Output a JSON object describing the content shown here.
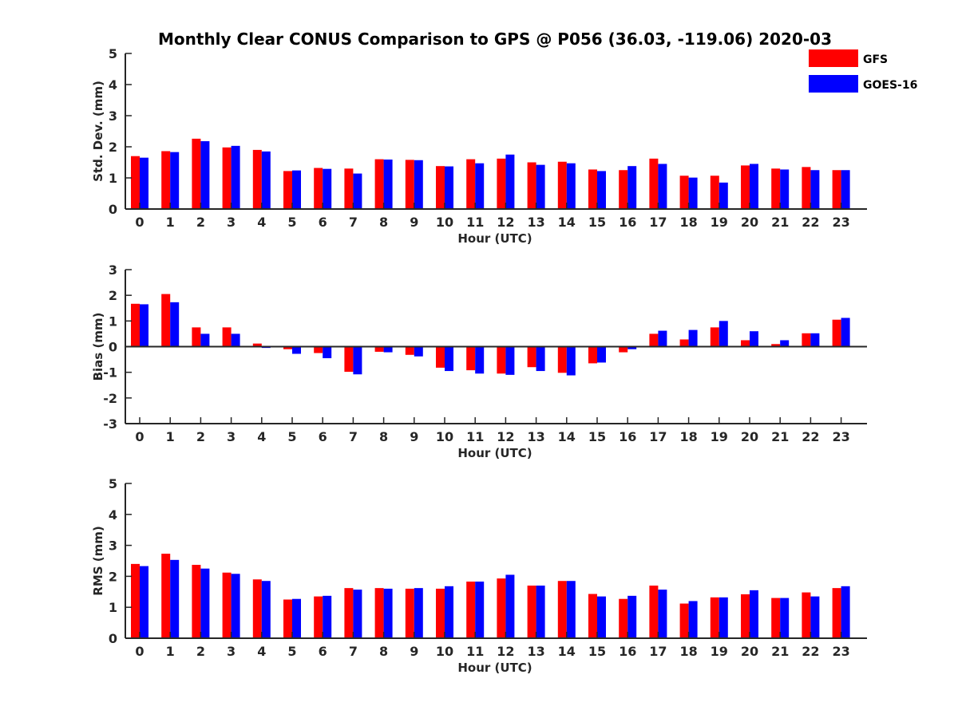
{
  "title": "Monthly Clear CONUS Comparison to GPS @ P056 (36.03, -119.06) 2020-03",
  "legend": [
    {
      "name": "GFS",
      "color": "#ff0000"
    },
    {
      "name": "GOES-16",
      "color": "#0000ff"
    }
  ],
  "chart_data": [
    {
      "type": "bar",
      "xlabel": "Hour (UTC)",
      "ylabel": "Std. Dev. (mm)",
      "ylim": [
        0,
        5
      ],
      "yticks": [
        "0",
        "1",
        "2",
        "3",
        "4",
        "5"
      ],
      "categories": [
        "0",
        "1",
        "2",
        "3",
        "4",
        "5",
        "6",
        "7",
        "8",
        "9",
        "10",
        "11",
        "12",
        "13",
        "14",
        "15",
        "16",
        "17",
        "18",
        "19",
        "20",
        "21",
        "22",
        "23"
      ],
      "series": [
        {
          "name": "GFS",
          "values": [
            1.7,
            1.86,
            2.26,
            1.98,
            1.9,
            1.22,
            1.32,
            1.3,
            1.6,
            1.58,
            1.38,
            1.6,
            1.62,
            1.5,
            1.52,
            1.27,
            1.25,
            1.62,
            1.07,
            1.07,
            1.4,
            1.3,
            1.35,
            1.25
          ]
        },
        {
          "name": "GOES-16",
          "values": [
            1.65,
            1.83,
            2.18,
            2.03,
            1.85,
            1.24,
            1.29,
            1.14,
            1.59,
            1.57,
            1.37,
            1.47,
            1.75,
            1.42,
            1.47,
            1.22,
            1.38,
            1.45,
            1.01,
            0.85,
            1.45,
            1.27,
            1.25,
            1.25
          ]
        }
      ]
    },
    {
      "type": "bar",
      "xlabel": "Hour (UTC)",
      "ylabel": "Bias (mm)",
      "ylim": [
        -3,
        3
      ],
      "yticks": [
        "-3",
        "-2",
        "-1",
        "0",
        "1",
        "2",
        "3"
      ],
      "categories": [
        "0",
        "1",
        "2",
        "3",
        "4",
        "5",
        "6",
        "7",
        "8",
        "9",
        "10",
        "11",
        "12",
        "13",
        "14",
        "15",
        "16",
        "17",
        "18",
        "19",
        "20",
        "21",
        "22",
        "23"
      ],
      "series": [
        {
          "name": "GFS",
          "values": [
            1.67,
            2.05,
            0.75,
            0.75,
            0.12,
            -0.1,
            -0.25,
            -0.98,
            -0.2,
            -0.32,
            -0.82,
            -0.92,
            -1.05,
            -0.8,
            -1.02,
            -0.65,
            -0.22,
            0.5,
            0.28,
            0.75,
            0.25,
            0.1,
            0.52,
            1.05
          ]
        },
        {
          "name": "GOES-16",
          "values": [
            1.65,
            1.73,
            0.5,
            0.5,
            -0.05,
            -0.28,
            -0.45,
            -1.08,
            -0.22,
            -0.38,
            -0.95,
            -1.05,
            -1.1,
            -0.95,
            -1.12,
            -0.62,
            -0.1,
            0.62,
            0.65,
            1.0,
            0.6,
            0.25,
            0.52,
            1.12
          ]
        }
      ]
    },
    {
      "type": "bar",
      "xlabel": "Hour (UTC)",
      "ylabel": "RMS (mm)",
      "ylim": [
        0,
        5
      ],
      "yticks": [
        "0",
        "1",
        "2",
        "3",
        "4",
        "5"
      ],
      "categories": [
        "0",
        "1",
        "2",
        "3",
        "4",
        "5",
        "6",
        "7",
        "8",
        "9",
        "10",
        "11",
        "12",
        "13",
        "14",
        "15",
        "16",
        "17",
        "18",
        "19",
        "20",
        "21",
        "22",
        "23"
      ],
      "series": [
        {
          "name": "GFS",
          "values": [
            2.4,
            2.73,
            2.37,
            2.12,
            1.9,
            1.25,
            1.35,
            1.62,
            1.62,
            1.6,
            1.6,
            1.83,
            1.93,
            1.7,
            1.85,
            1.43,
            1.27,
            1.7,
            1.12,
            1.32,
            1.42,
            1.3,
            1.48,
            1.62
          ]
        },
        {
          "name": "GOES-16",
          "values": [
            2.33,
            2.53,
            2.25,
            2.08,
            1.85,
            1.27,
            1.37,
            1.57,
            1.6,
            1.62,
            1.68,
            1.83,
            2.05,
            1.7,
            1.85,
            1.35,
            1.37,
            1.57,
            1.2,
            1.32,
            1.55,
            1.3,
            1.35,
            1.68
          ]
        }
      ]
    }
  ]
}
